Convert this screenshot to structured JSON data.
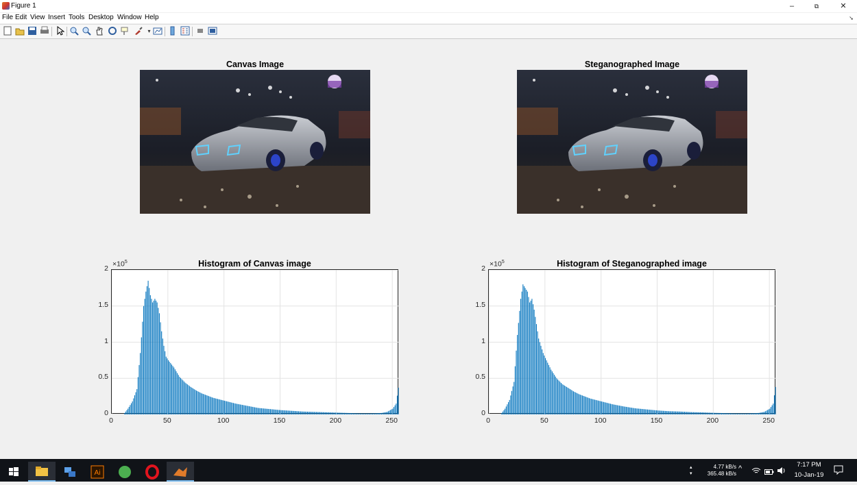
{
  "window": {
    "title": "Figure 1",
    "controls": {
      "minimize": "–",
      "restore": "⧉",
      "close": "✕"
    }
  },
  "menu": [
    "File",
    "Edit",
    "View",
    "Insert",
    "Tools",
    "Desktop",
    "Window",
    "Help"
  ],
  "toolbar": {
    "icons": [
      "new-figure-icon",
      "open-file-icon",
      "save-icon",
      "print-icon",
      "pointer-icon",
      "zoom-in-icon",
      "zoom-out-icon",
      "pan-icon",
      "rotate-3d-icon",
      "data-cursor-icon",
      "brush-icon",
      "link-plot-icon",
      "colorbar-icon",
      "legend-icon",
      "hide-plot-tools-icon",
      "show-plot-tools-icon"
    ]
  },
  "axes": {
    "canvas_image_title": "Canvas Image",
    "stego_image_title": "Steganographed Image"
  },
  "chart_data": [
    {
      "type": "bar",
      "title": "Histogram of Canvas image",
      "xlabel": "",
      "ylabel": "",
      "xlim": [
        0,
        256
      ],
      "ylim": [
        0,
        2
      ],
      "y_scale_multiplier": "×10^5",
      "xticks": [
        "0",
        "50",
        "100",
        "150",
        "200",
        "250"
      ],
      "yticks": [
        "0",
        "0.5",
        "1",
        "1.5",
        "2"
      ],
      "grid": true,
      "bar_color": "#0072BD",
      "x": [
        10,
        14,
        18,
        22,
        25,
        28,
        30,
        32,
        34,
        36,
        38,
        40,
        42,
        44,
        46,
        48,
        50,
        55,
        60,
        65,
        70,
        75,
        80,
        90,
        100,
        110,
        120,
        130,
        140,
        150,
        160,
        170,
        180,
        190,
        200,
        210,
        220,
        230,
        240,
        245,
        250,
        253,
        255
      ],
      "values": [
        0,
        0.08,
        0.18,
        0.35,
        0.85,
        1.5,
        1.7,
        1.85,
        1.65,
        1.55,
        1.6,
        1.55,
        1.4,
        1.15,
        0.95,
        0.8,
        0.75,
        0.65,
        0.52,
        0.44,
        0.38,
        0.33,
        0.29,
        0.23,
        0.19,
        0.15,
        0.12,
        0.09,
        0.075,
        0.06,
        0.05,
        0.04,
        0.035,
        0.03,
        0.025,
        0.02,
        0.015,
        0.015,
        0.02,
        0.035,
        0.08,
        0.15,
        0.37
      ]
    },
    {
      "type": "bar",
      "title": "Histogram of Steganographed image",
      "xlabel": "",
      "ylabel": "",
      "xlim": [
        0,
        256
      ],
      "ylim": [
        0,
        2
      ],
      "y_scale_multiplier": "×10^5",
      "xticks": [
        "0",
        "50",
        "100",
        "150",
        "200",
        "250"
      ],
      "yticks": [
        "0",
        "0.5",
        "1",
        "1.5",
        "2"
      ],
      "grid": true,
      "bar_color": "#0072BD",
      "x": [
        10,
        14,
        18,
        22,
        25,
        28,
        30,
        32,
        34,
        36,
        38,
        40,
        42,
        44,
        46,
        48,
        50,
        55,
        60,
        65,
        70,
        75,
        80,
        90,
        100,
        110,
        120,
        130,
        140,
        150,
        160,
        170,
        180,
        190,
        200,
        210,
        220,
        230,
        240,
        245,
        250,
        253,
        255
      ],
      "values": [
        0,
        0.08,
        0.2,
        0.45,
        1.1,
        1.6,
        1.8,
        1.75,
        1.7,
        1.55,
        1.6,
        1.45,
        1.25,
        1.05,
        0.95,
        0.85,
        0.78,
        0.62,
        0.5,
        0.42,
        0.37,
        0.32,
        0.28,
        0.22,
        0.18,
        0.14,
        0.11,
        0.085,
        0.07,
        0.055,
        0.045,
        0.04,
        0.032,
        0.028,
        0.022,
        0.018,
        0.015,
        0.015,
        0.02,
        0.035,
        0.08,
        0.15,
        0.38
      ]
    }
  ],
  "taskbar": {
    "apps": [
      "windows-start-icon",
      "file-explorer-icon",
      "network-app-icon",
      "illustrator-icon",
      "green-app-icon",
      "opera-icon",
      "matlab-icon"
    ],
    "illustrator_label": "Ai",
    "net_up": "4.77 kB/s",
    "net_down": "365.48 kB/s",
    "time": "7:17 PM",
    "date": "10-Jan-19"
  }
}
